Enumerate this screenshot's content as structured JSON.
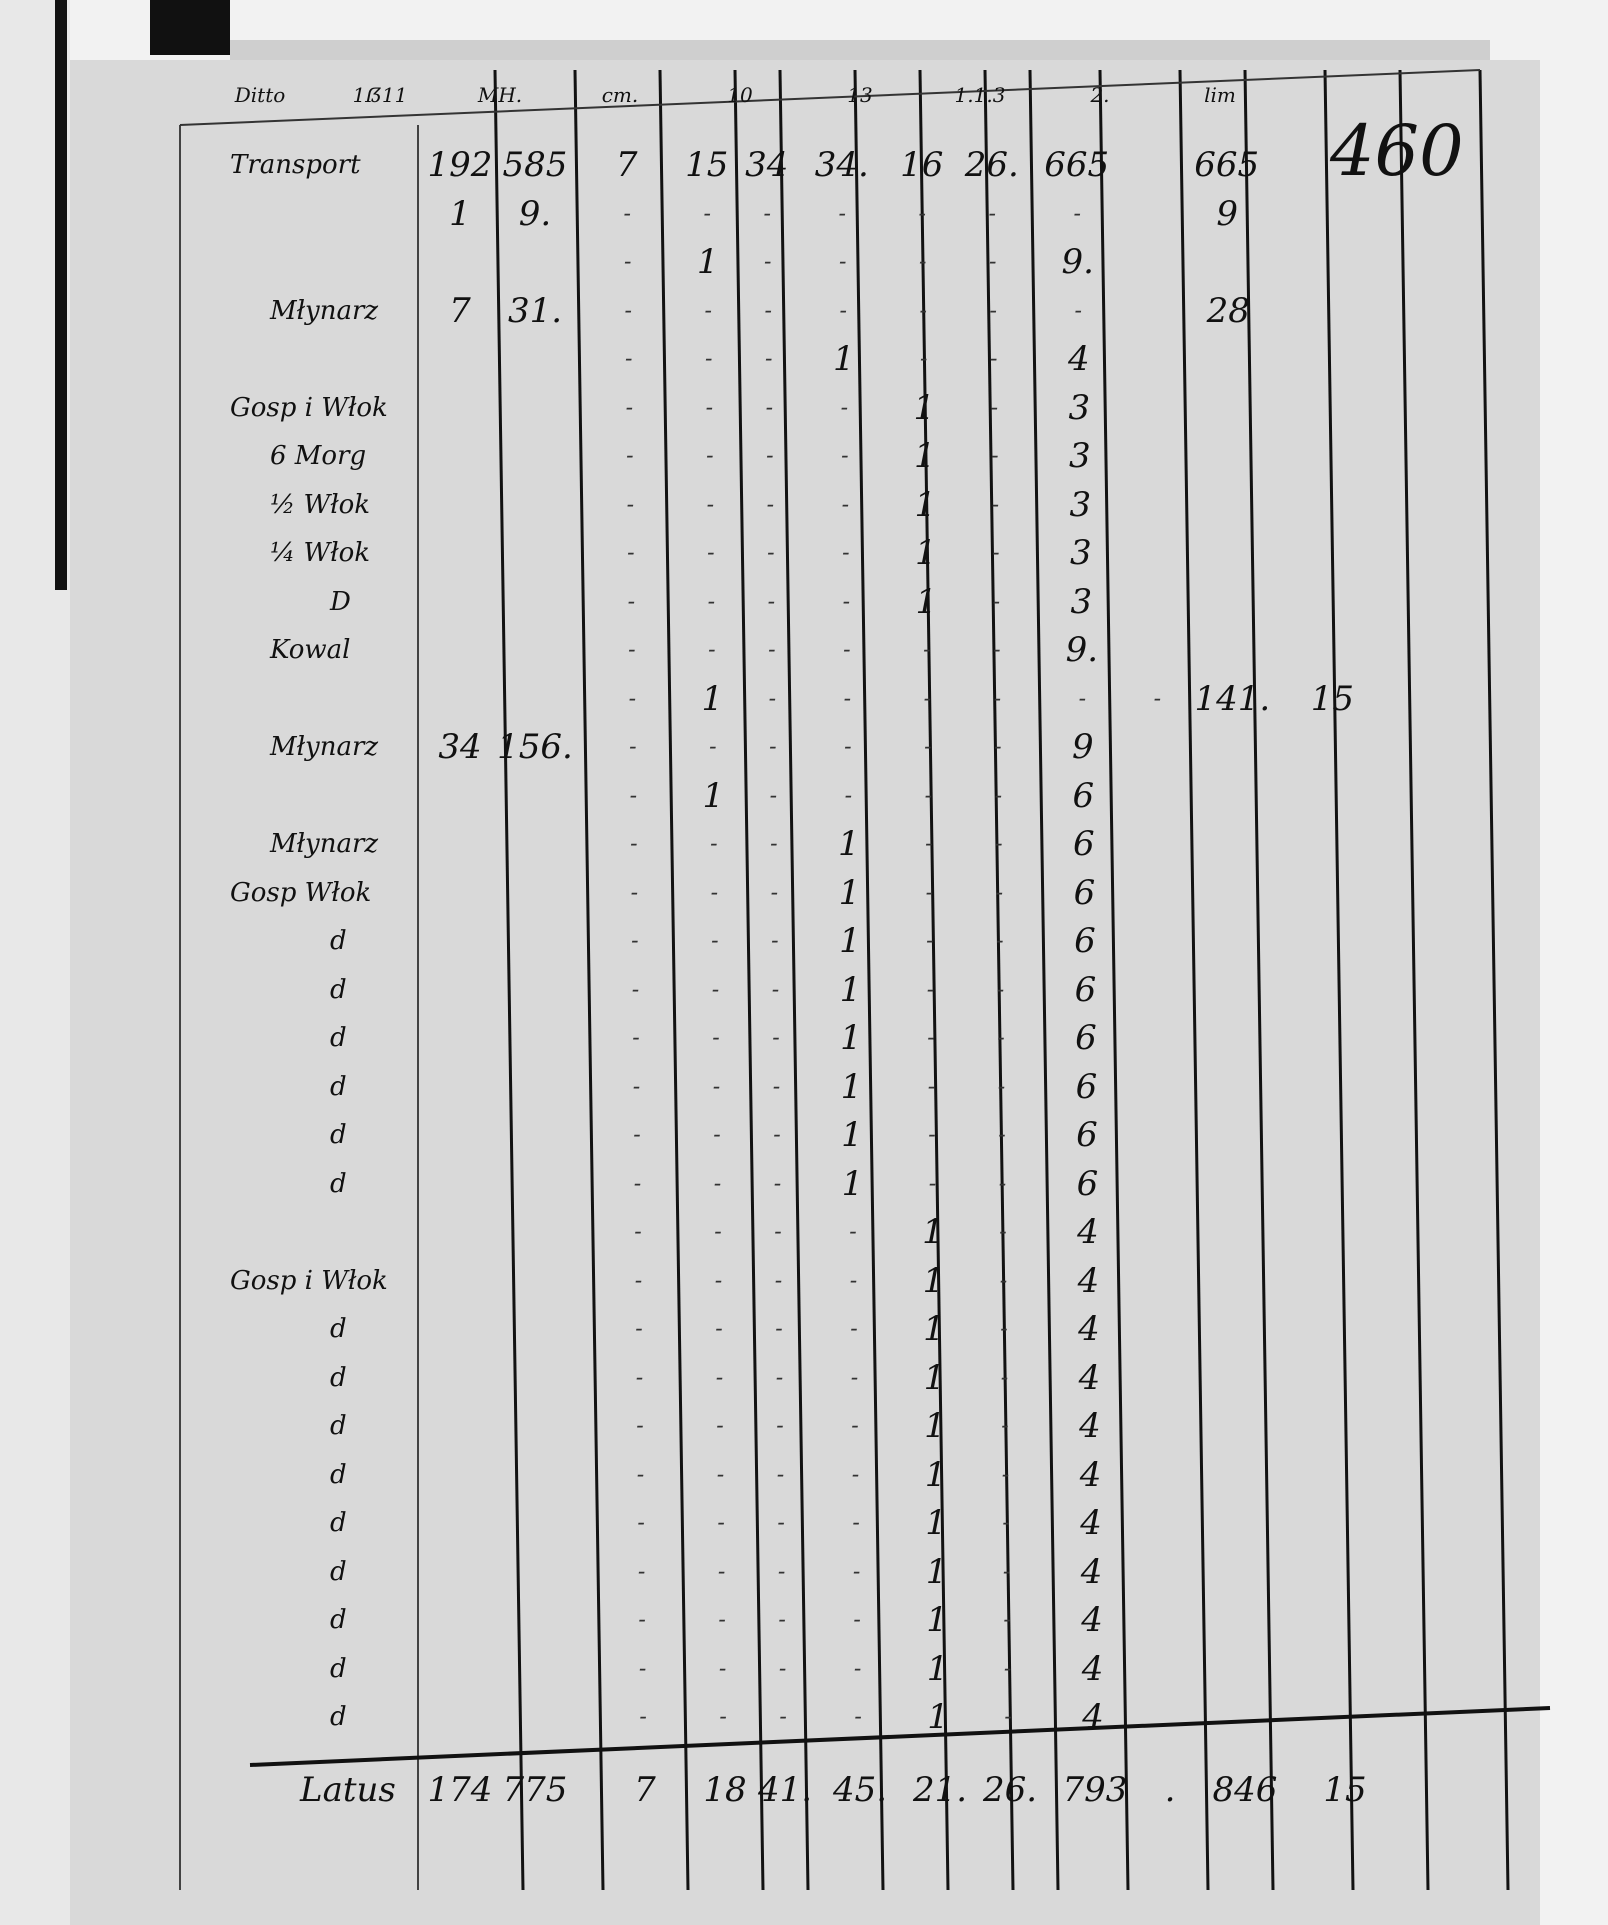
{
  "page_number": "460",
  "header_fragments": [
    "Ditto",
    "1ẞ11",
    "MH.",
    "cm.",
    "10",
    "13",
    "1.1.3",
    "2.",
    "lim"
  ],
  "columns_count": 13,
  "rows": [
    {
      "label": "Transport",
      "cells": [
        "192",
        "585",
        "7",
        "15",
        "34",
        "34.",
        "16",
        "26.",
        "665",
        "",
        "665"
      ]
    },
    {
      "label": "",
      "cells": [
        "1",
        "9.",
        "-",
        "-",
        "-",
        "-",
        "-",
        "-",
        "-",
        "",
        "9"
      ]
    },
    {
      "label": "",
      "cells": [
        "",
        "",
        "-",
        "1",
        "-",
        "-",
        "-",
        "-",
        "9.",
        "",
        ""
      ]
    },
    {
      "label": "Młynarz",
      "cells": [
        "7",
        "31.",
        "-",
        "-",
        "-",
        "-",
        "-",
        "-",
        "-",
        "",
        "28"
      ]
    },
    {
      "label": "",
      "cells": [
        "",
        "",
        "-",
        "-",
        "-",
        "1",
        "-",
        "-",
        "4"
      ]
    },
    {
      "label": "Gosp i Włok",
      "cells": [
        "",
        "",
        "-",
        "-",
        "-",
        "-",
        "1",
        "-",
        "3"
      ]
    },
    {
      "label": "6 Morg",
      "cells": [
        "",
        "",
        "-",
        "-",
        "-",
        "-",
        "1",
        "-",
        "3"
      ]
    },
    {
      "label": "½ Włok",
      "cells": [
        "",
        "",
        "-",
        "-",
        "-",
        "-",
        "1",
        "-",
        "3"
      ]
    },
    {
      "label": "¼ Włok",
      "cells": [
        "",
        "",
        "-",
        "-",
        "-",
        "-",
        "1",
        "-",
        "3"
      ]
    },
    {
      "label": "D",
      "cells": [
        "",
        "",
        "-",
        "-",
        "-",
        "-",
        "1",
        "-",
        "3"
      ]
    },
    {
      "label": "Kowal",
      "cells": [
        "",
        "",
        "-",
        "-",
        "-",
        "-",
        "-",
        "-",
        "9."
      ]
    },
    {
      "label": "",
      "cells": [
        "",
        "",
        "-",
        "1",
        "-",
        "-",
        "-",
        "-",
        "-",
        "-",
        "141.",
        "15"
      ]
    },
    {
      "label": "Młynarz",
      "cells": [
        "34",
        "156.",
        "-",
        "-",
        "-",
        "-",
        "-",
        "-",
        "9"
      ]
    },
    {
      "label": "",
      "cells": [
        "",
        "",
        "-",
        "1",
        "-",
        "-",
        "-",
        "-",
        "6"
      ]
    },
    {
      "label": "Młynarz",
      "cells": [
        "",
        "",
        "-",
        "-",
        "-",
        "1",
        "-",
        "-",
        "6"
      ]
    },
    {
      "label": "Gosp Włok",
      "cells": [
        "",
        "",
        "-",
        "-",
        "-",
        "1",
        "-",
        "-",
        "6"
      ]
    },
    {
      "label": "d",
      "cells": [
        "",
        "",
        "-",
        "-",
        "-",
        "1",
        "-",
        "-",
        "6"
      ]
    },
    {
      "label": "d",
      "cells": [
        "",
        "",
        "-",
        "-",
        "-",
        "1",
        "-",
        "-",
        "6"
      ]
    },
    {
      "label": "d",
      "cells": [
        "",
        "",
        "-",
        "-",
        "-",
        "1",
        "-",
        "-",
        "6"
      ]
    },
    {
      "label": "d",
      "cells": [
        "",
        "",
        "-",
        "-",
        "-",
        "1",
        "-",
        "-",
        "6"
      ]
    },
    {
      "label": "d",
      "cells": [
        "",
        "",
        "-",
        "-",
        "-",
        "1",
        "-",
        "-",
        "6"
      ]
    },
    {
      "label": "d",
      "cells": [
        "",
        "",
        "-",
        "-",
        "-",
        "1",
        "-",
        "-",
        "6"
      ]
    },
    {
      "label": "",
      "cells": [
        "",
        "",
        "-",
        "-",
        "-",
        "-",
        "1",
        "-",
        "4"
      ]
    },
    {
      "label": "Gosp i Włok",
      "cells": [
        "",
        "",
        "-",
        "-",
        "-",
        "-",
        "1",
        "-",
        "4"
      ]
    },
    {
      "label": "d",
      "cells": [
        "",
        "",
        "-",
        "-",
        "-",
        "-",
        "1",
        "-",
        "4"
      ]
    },
    {
      "label": "d",
      "cells": [
        "",
        "",
        "-",
        "-",
        "-",
        "-",
        "1",
        "-",
        "4"
      ]
    },
    {
      "label": "d",
      "cells": [
        "",
        "",
        "-",
        "-",
        "-",
        "-",
        "1",
        "-",
        "4"
      ]
    },
    {
      "label": "d",
      "cells": [
        "",
        "",
        "-",
        "-",
        "-",
        "-",
        "1",
        "-",
        "4"
      ]
    },
    {
      "label": "d",
      "cells": [
        "",
        "",
        "-",
        "-",
        "-",
        "-",
        "1",
        "-",
        "4"
      ]
    },
    {
      "label": "d",
      "cells": [
        "",
        "",
        "-",
        "-",
        "-",
        "-",
        "1",
        "-",
        "4"
      ]
    },
    {
      "label": "d",
      "cells": [
        "",
        "",
        "-",
        "-",
        "-",
        "-",
        "1",
        "-",
        "4"
      ]
    },
    {
      "label": "d",
      "cells": [
        "",
        "",
        "-",
        "-",
        "-",
        "-",
        "1",
        "-",
        "4"
      ]
    },
    {
      "label": "d",
      "cells": [
        "",
        "",
        "-",
        "-",
        "-",
        "-",
        "1",
        "-",
        "4"
      ]
    }
  ],
  "total": {
    "label": "Latus",
    "cells": [
      "174",
      "775",
      "7",
      "18",
      "41.",
      "45.",
      "21.",
      "26.",
      "793",
      ".",
      "846",
      "15"
    ]
  }
}
